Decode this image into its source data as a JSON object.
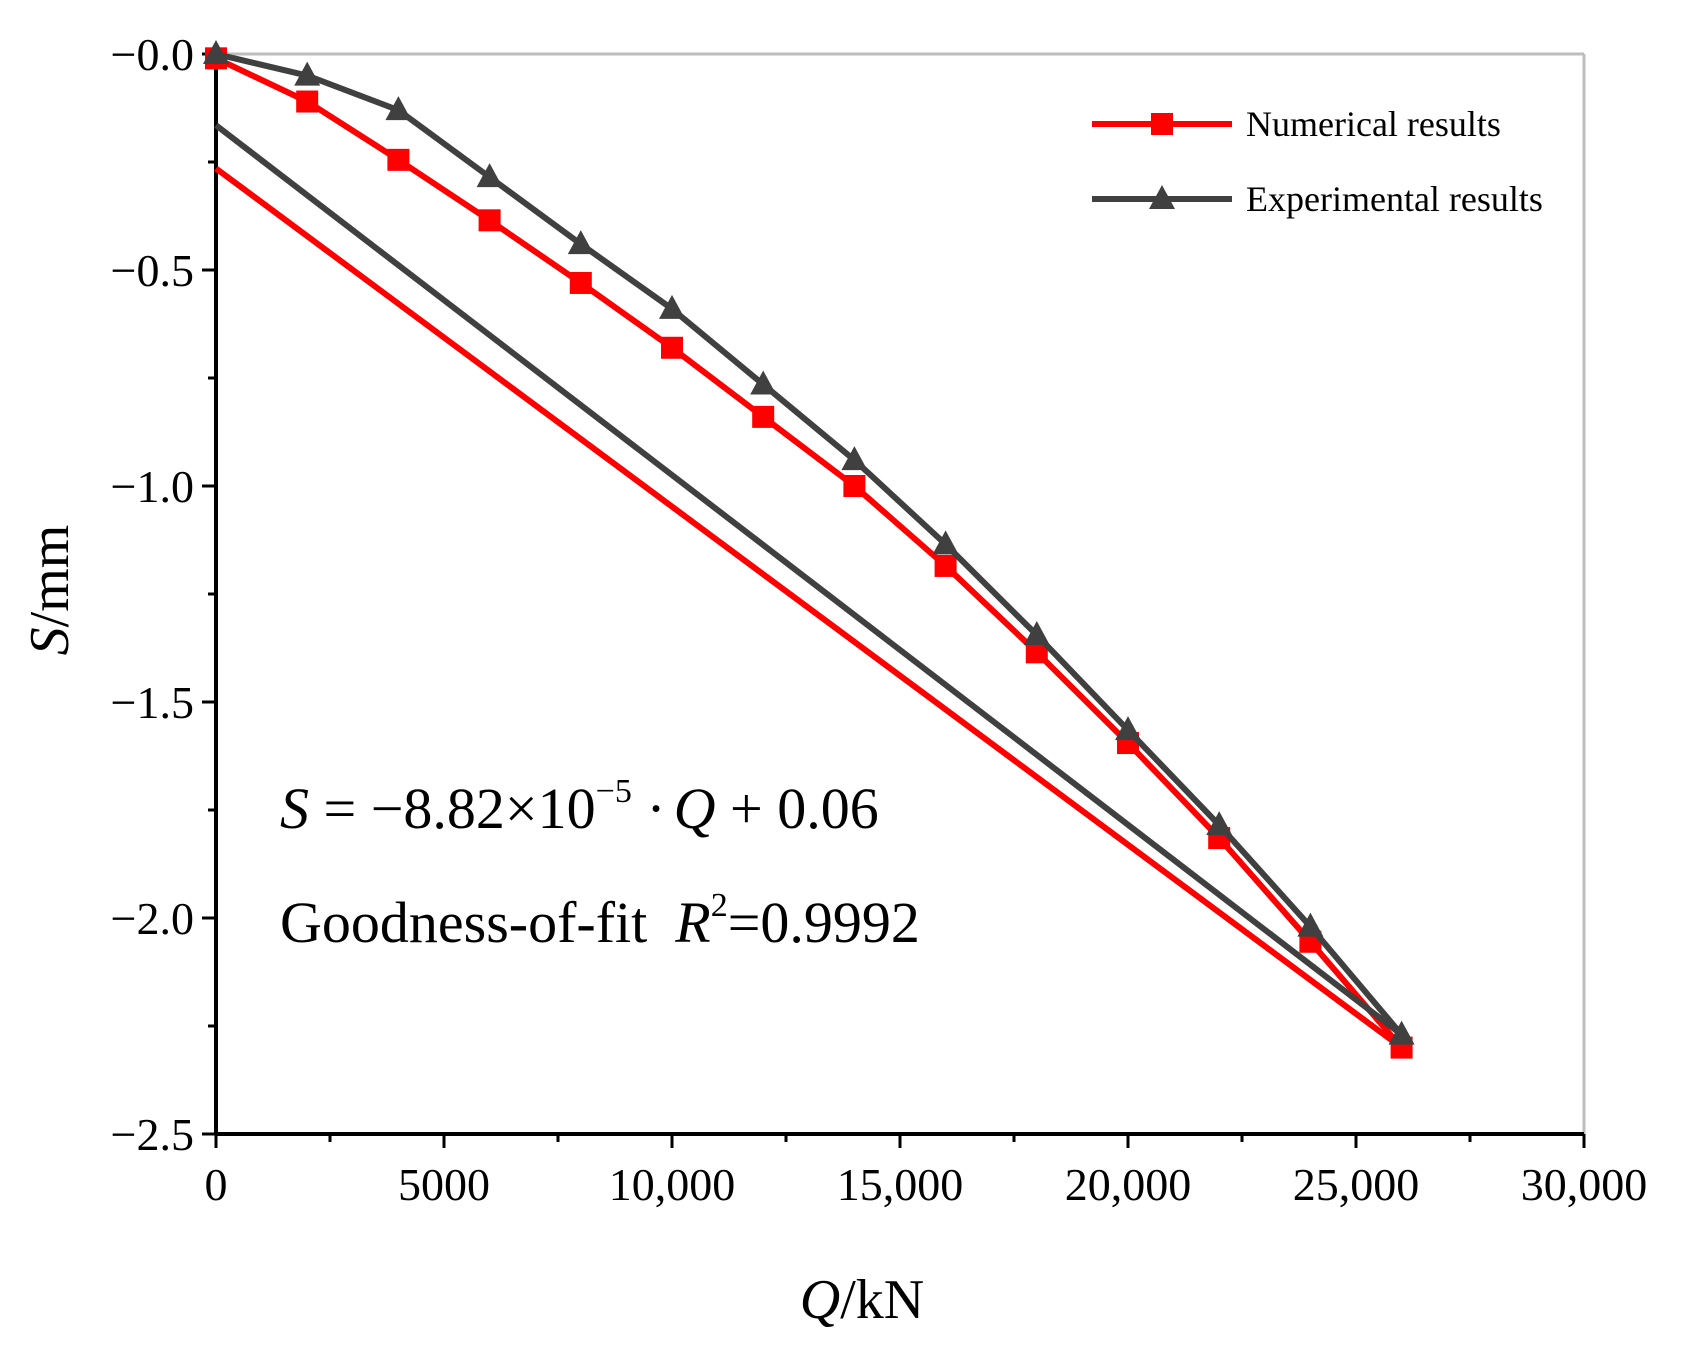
{
  "chart_data": {
    "type": "line",
    "xlabel_italic": "Q",
    "xlabel_rest": "/kN",
    "ylabel_italic": "S",
    "ylabel_rest": "/mm",
    "xlim": [
      0,
      30000
    ],
    "ylim": [
      -2.5,
      0
    ],
    "x_ticks": [
      0,
      5000,
      10000,
      15000,
      20000,
      25000,
      30000
    ],
    "x_tick_labels": [
      "0",
      "5000",
      "10,000",
      "15,000",
      "20,000",
      "25,000",
      "30,000"
    ],
    "y_ticks": [
      0,
      -0.5,
      -1.0,
      -1.5,
      -2.0,
      -2.5
    ],
    "y_tick_labels": [
      "−0.0",
      "−0.5",
      "−1.0",
      "−1.5",
      "−2.0",
      "−2.5"
    ],
    "legend_position": "top-right",
    "series": [
      {
        "name": "Numerical results",
        "color": "#ff0000",
        "marker": "square",
        "loading_x": [
          0,
          2000,
          4000,
          6000,
          8000,
          10000,
          12000,
          14000,
          16000,
          18000,
          20000,
          22000,
          24000,
          26000
        ],
        "loading_y": [
          -0.01,
          -0.11,
          -0.245,
          -0.385,
          -0.53,
          -0.68,
          -0.84,
          -1.0,
          -1.185,
          -1.385,
          -1.595,
          -1.815,
          -2.055,
          -2.3
        ],
        "unloading_x": [
          26000,
          0
        ],
        "unloading_y": [
          -2.3,
          -0.265
        ]
      },
      {
        "name": "Experimental results",
        "color": "#404040",
        "marker": "triangle",
        "loading_x": [
          0,
          2000,
          4000,
          6000,
          8000,
          10000,
          12000,
          14000,
          16000,
          18000,
          20000,
          22000,
          24000,
          26000
        ],
        "loading_y": [
          0.0,
          -0.05,
          -0.13,
          -0.285,
          -0.44,
          -0.59,
          -0.765,
          -0.94,
          -1.135,
          -1.345,
          -1.565,
          -1.785,
          -2.02,
          -2.27
        ],
        "unloading_x": [
          26000,
          0
        ],
        "unloading_y": [
          -2.27,
          -0.165
        ]
      }
    ],
    "annotation": {
      "equation_s": "S",
      "equation_mid": " = −8.82×10",
      "equation_exp": "−5",
      "equation_dot": " ·",
      "equation_q": "Q",
      "equation_end": " + 0.06",
      "fit_label": "Goodness-of-fit",
      "fit_r": "R",
      "fit_sup": "2",
      "fit_value": "=0.9992"
    }
  }
}
